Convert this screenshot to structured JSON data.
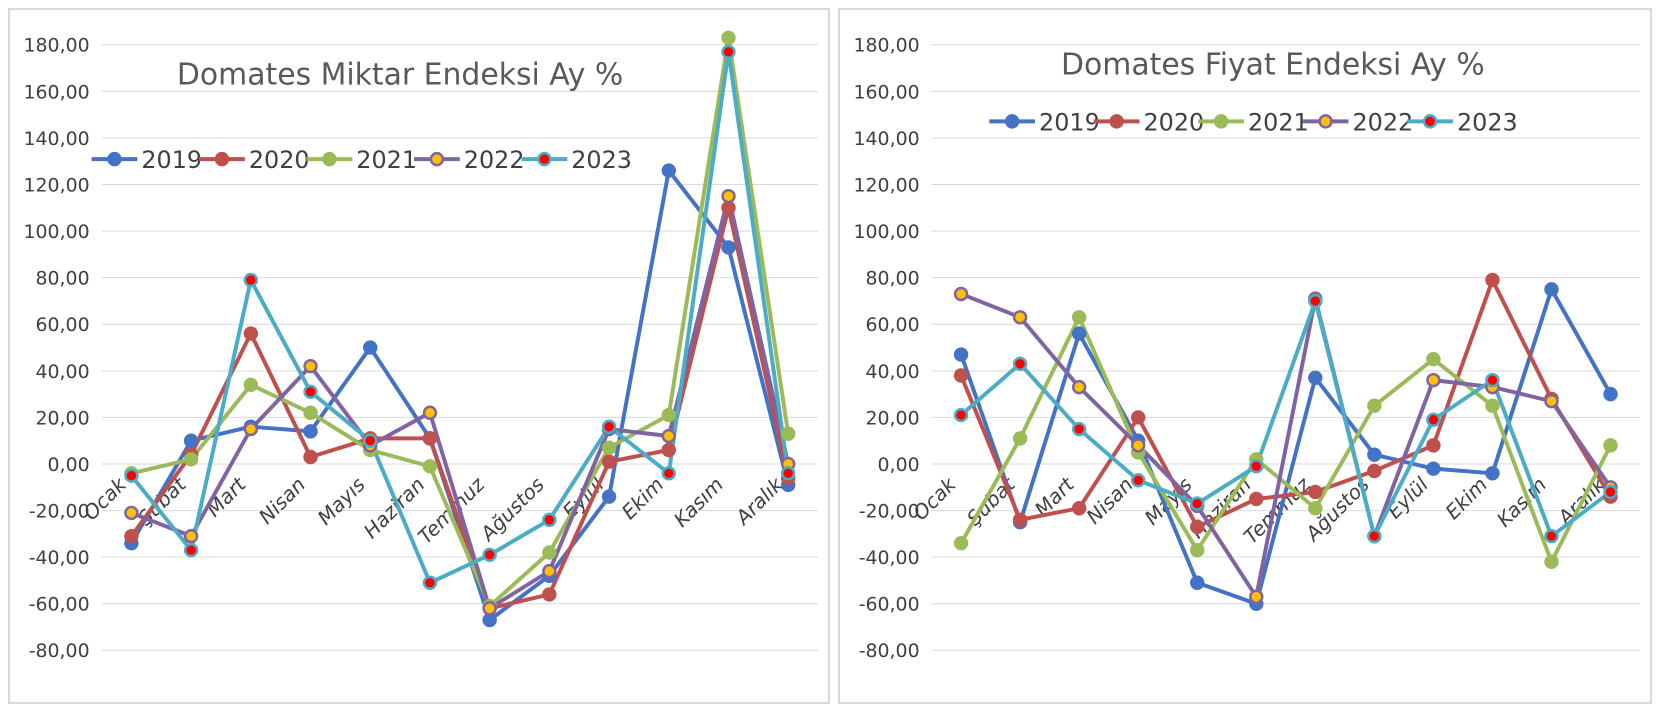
{
  "colors": {
    "2019": "#4472c4",
    "2020": "#c0504d",
    "2021": "#9bbb59",
    "2022": "#8064a2",
    "2023": "#4bacc6",
    "marker_fill_2022": "#ffc000",
    "marker_fill_2023": "#ff0000",
    "gridline": "#d9d9d9",
    "text": "#404040"
  },
  "chart_data": [
    {
      "type": "line",
      "title": "Domates Miktar Endeksi Ay  %",
      "xlabel": "",
      "ylabel": "",
      "ylim": [
        -80,
        180
      ],
      "ytick_step": 20,
      "ytick_labels": [
        "-80,00",
        "-60,00",
        "-40,00",
        "-20,00",
        "0,00",
        "20,00",
        "40,00",
        "60,00",
        "80,00",
        "100,00",
        "120,00",
        "140,00",
        "160,00",
        "180,00"
      ],
      "grid": true,
      "legend_position": "top-left",
      "categories": [
        "Ocak",
        "Şubat",
        "Mart",
        "Nisan",
        "Mayıs",
        "Haziran",
        "Temmuz",
        "Ağustos",
        "Eylül",
        "Ekim",
        "Kasım",
        "Aralık"
      ],
      "series": [
        {
          "name": "2019",
          "values": [
            -34,
            10,
            16,
            14,
            50,
            11,
            -67,
            -48,
            -14,
            126,
            93,
            -9
          ]
        },
        {
          "name": "2020",
          "values": [
            -31,
            4,
            56,
            3,
            11,
            11,
            -62,
            -56,
            1,
            6,
            110,
            -6
          ]
        },
        {
          "name": "2021",
          "values": [
            -4,
            2,
            34,
            22,
            6,
            -1,
            -61,
            -38,
            7,
            21,
            183,
            13
          ]
        },
        {
          "name": "2022",
          "values": [
            -21,
            -31,
            15,
            42,
            8,
            22,
            -62,
            -46,
            15,
            12,
            115,
            0
          ]
        },
        {
          "name": "2023",
          "values": [
            -5,
            -37,
            79,
            31,
            10,
            -51,
            -39,
            -24,
            16,
            -4,
            177,
            -4
          ]
        }
      ]
    },
    {
      "type": "line",
      "title": "Domates Fiyat Endeksi Ay %",
      "xlabel": "",
      "ylabel": "",
      "ylim": [
        -80,
        180
      ],
      "ytick_step": 20,
      "ytick_labels": [
        "-80,00",
        "-60,00",
        "-40,00",
        "-20,00",
        "0,00",
        "20,00",
        "40,00",
        "60,00",
        "80,00",
        "100,00",
        "120,00",
        "140,00",
        "160,00",
        "180,00"
      ],
      "grid": true,
      "legend_position": "top",
      "categories": [
        "Ocak",
        "Şubat",
        "Mart",
        "Nisan",
        "Mayıs",
        "Haziran",
        "Temmuz",
        "Ağustos",
        "Eylül",
        "Ekim",
        "Kasım",
        "Aralık"
      ],
      "series": [
        {
          "name": "2019",
          "values": [
            47,
            -25,
            56,
            10,
            -51,
            -60,
            37,
            4,
            -2,
            -4,
            75,
            30
          ]
        },
        {
          "name": "2020",
          "values": [
            38,
            -24,
            -19,
            20,
            -27,
            -15,
            -12,
            -3,
            8,
            79,
            28,
            -14
          ]
        },
        {
          "name": "2021",
          "values": [
            -34,
            11,
            63,
            5,
            -37,
            2,
            -19,
            25,
            45,
            25,
            -42,
            8
          ]
        },
        {
          "name": "2022",
          "values": [
            73,
            63,
            33,
            8,
            -18,
            -57,
            71,
            -31,
            36,
            33,
            27,
            -10
          ]
        },
        {
          "name": "2023",
          "values": [
            21,
            43,
            15,
            -7,
            -17,
            -1,
            70,
            -31,
            19,
            36,
            -31,
            -12
          ]
        }
      ]
    }
  ]
}
